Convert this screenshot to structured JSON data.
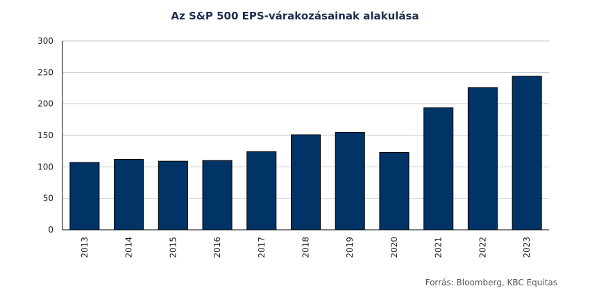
{
  "chart_data": {
    "type": "bar",
    "title": "Az S&P 500 EPS-várakozásainak alakulása",
    "categories": [
      "2013",
      "2014",
      "2015",
      "2016",
      "2017",
      "2018",
      "2019",
      "2020",
      "2021",
      "2022",
      "2023"
    ],
    "values": [
      107,
      112,
      109,
      110,
      124,
      151,
      155,
      123,
      194,
      226,
      244
    ],
    "ylim": [
      0,
      300
    ],
    "yticks": [
      0,
      50,
      100,
      150,
      200,
      250,
      300
    ],
    "grid": true,
    "bar_color": "#003366",
    "source": "Forrás: Bloomberg, KBC Equitas"
  }
}
